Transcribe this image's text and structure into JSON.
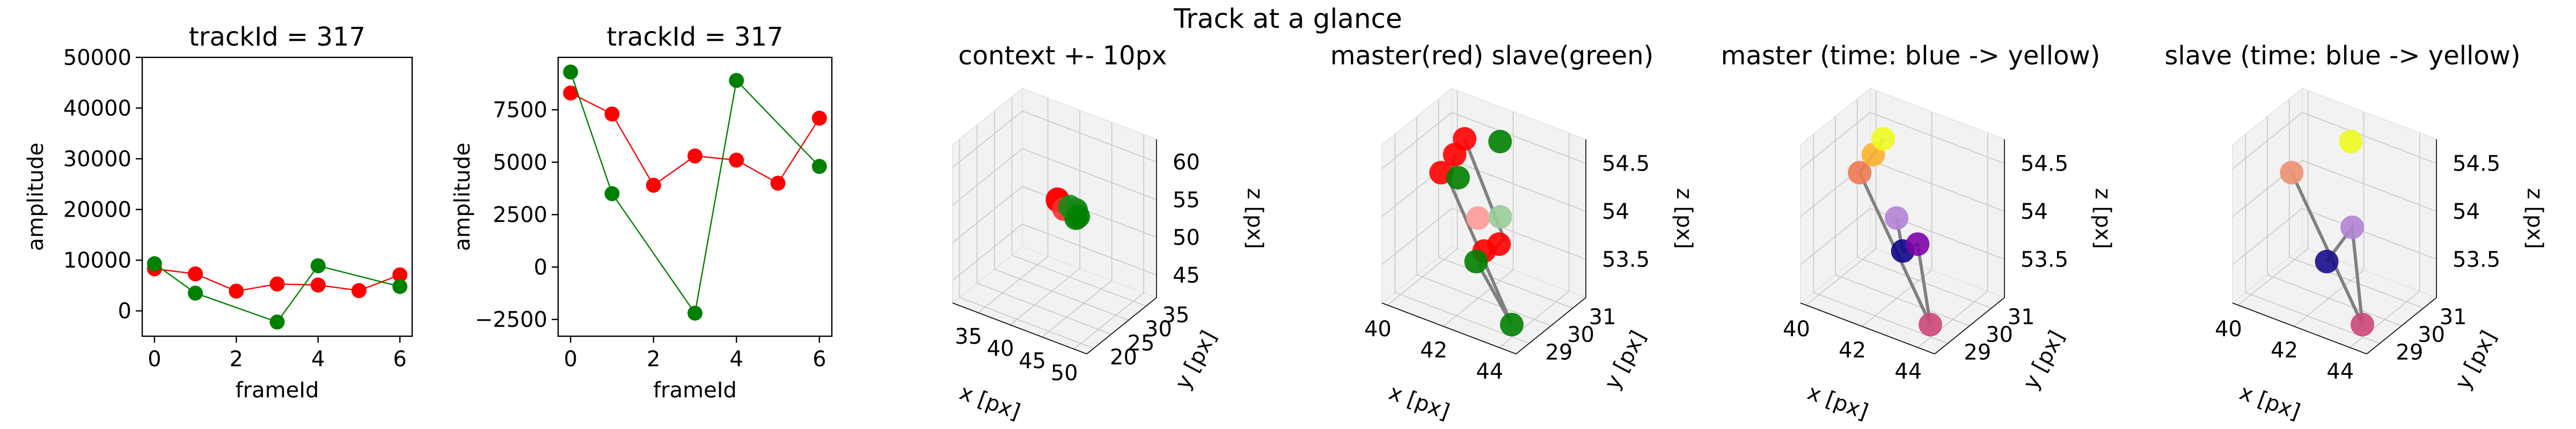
{
  "figure": {
    "suptitle": "Track at a glance"
  },
  "chart_data": [
    {
      "type": "line",
      "title": "trackId = 317",
      "xlabel": "frameId",
      "ylabel": "amplitude",
      "xlim": [
        -0.3,
        6.3
      ],
      "ylim": [
        -5000,
        50000
      ],
      "xticks": [
        0,
        2,
        4,
        6
      ],
      "yticks": [
        0,
        10000,
        20000,
        30000,
        40000,
        50000
      ],
      "series": [
        {
          "color": "#ff0000",
          "x": [
            0,
            1,
            2,
            3,
            4,
            5,
            6
          ],
          "values": [
            8300,
            7300,
            3900,
            5300,
            5100,
            4000,
            7100
          ]
        },
        {
          "color": "#008000",
          "x": [
            0,
            1,
            3,
            4,
            6
          ],
          "values": [
            9300,
            3500,
            -2200,
            8900,
            4800
          ]
        }
      ]
    },
    {
      "type": "line",
      "title": "trackId = 317",
      "xlabel": "frameId",
      "ylabel": "amplitude",
      "xlim": [
        -0.3,
        6.3
      ],
      "ylim": [
        -3300,
        10000
      ],
      "xticks": [
        0,
        2,
        4,
        6
      ],
      "yticks": [
        -2500,
        0,
        2500,
        5000,
        7500
      ],
      "series": [
        {
          "color": "#ff0000",
          "x": [
            0,
            1,
            2,
            3,
            4,
            5,
            6
          ],
          "values": [
            8300,
            7300,
            3900,
            5300,
            5100,
            4000,
            7100
          ]
        },
        {
          "color": "#008000",
          "x": [
            0,
            1,
            3,
            4,
            6
          ],
          "values": [
            9300,
            3500,
            -2200,
            8900,
            4800
          ]
        }
      ]
    },
    {
      "type": "scatter",
      "title": "context +- 10px",
      "xlabel": "x [px]",
      "ylabel": "y [px]",
      "zlabel": "z [px]",
      "xlim": [
        31,
        52
      ],
      "ylim": [
        18,
        38
      ],
      "zlim": [
        42,
        63
      ],
      "xticks": [
        35,
        40,
        45,
        50
      ],
      "yticks": [
        20,
        25,
        30,
        35
      ],
      "zticks": [
        45,
        50,
        55,
        60
      ],
      "lines": [
        {
          "color": "#808080",
          "points": [
            [
              41.2,
              29.5,
              53.6
            ],
            [
              42.8,
              30.8,
              54.3
            ],
            [
              43.6,
              30.1,
              53.8
            ],
            [
              42.3,
              29.8,
              54.2
            ]
          ]
        }
      ],
      "points": [
        {
          "x": 41.0,
          "y": 29.8,
          "z": 54.4,
          "color": "#ff0000"
        },
        {
          "x": 40.6,
          "y": 30.5,
          "z": 54.2,
          "color": "#ff0000"
        },
        {
          "x": 42.1,
          "y": 29.6,
          "z": 53.7,
          "color": "#ff3030"
        },
        {
          "x": 43.4,
          "y": 30.7,
          "z": 53.6,
          "color": "#008000"
        },
        {
          "x": 44.1,
          "y": 29.4,
          "z": 53.2,
          "color": "#008000"
        },
        {
          "x": 42.7,
          "y": 30.2,
          "z": 54.0,
          "color": "#1a8a1a"
        },
        {
          "x": 43.9,
          "y": 30.4,
          "z": 53.0,
          "color": "#008000"
        }
      ]
    },
    {
      "type": "scatter",
      "title": "master(red) slave(green)",
      "xlabel": "x [px]",
      "ylabel": "y [px]",
      "zlabel": "z [px]",
      "xlim": [
        39.8,
        44.6
      ],
      "ylim": [
        28.4,
        31.6
      ],
      "zlim": [
        53.1,
        54.75
      ],
      "xticks": [
        40,
        42,
        44
      ],
      "yticks": [
        29,
        30,
        31
      ],
      "zticks": [
        53.5,
        54.0,
        54.5
      ],
      "lines": [
        {
          "color": "#808080",
          "points": [
            [
              41.0,
              30.2,
              54.45
            ],
            [
              41.3,
              29.6,
              54.3
            ],
            [
              43.9,
              29.1,
              53.2
            ],
            [
              42.5,
              29.4,
              53.6
            ],
            [
              43.0,
              29.9,
              53.85
            ],
            [
              41.2,
              30.4,
              54.6
            ]
          ]
        }
      ],
      "points": [
        {
          "x": 41.2,
          "y": 30.4,
          "z": 54.6,
          "color": "#ff0000"
        },
        {
          "x": 41.0,
          "y": 30.2,
          "z": 54.45,
          "color": "#ff0000"
        },
        {
          "x": 40.2,
          "y": 30.6,
          "z": 54.1,
          "color": "#ff0000"
        },
        {
          "x": 41.6,
          "y": 30.5,
          "z": 53.8,
          "color": "#ff9999"
        },
        {
          "x": 42.6,
          "y": 29.5,
          "z": 53.75,
          "color": "#ff0000"
        },
        {
          "x": 42.9,
          "y": 29.8,
          "z": 53.8,
          "color": "#ff0000"
        },
        {
          "x": 42.0,
          "y": 31.0,
          "z": 54.55,
          "color": "#008000"
        },
        {
          "x": 41.2,
          "y": 30.1,
          "z": 54.25,
          "color": "#008000"
        },
        {
          "x": 42.4,
          "y": 30.5,
          "z": 53.9,
          "color": "#99cc99"
        },
        {
          "x": 42.0,
          "y": 29.9,
          "z": 53.5,
          "color": "#008000"
        },
        {
          "x": 43.9,
          "y": 29.1,
          "z": 53.2,
          "color": "#008000"
        }
      ]
    },
    {
      "type": "scatter",
      "title": "master (time: blue -> yellow)",
      "xlabel": "x [px]",
      "ylabel": "y [px]",
      "zlabel": "z [px]",
      "xlim": [
        39.8,
        44.6
      ],
      "ylim": [
        28.4,
        31.6
      ],
      "zlim": [
        53.1,
        54.75
      ],
      "xticks": [
        40,
        42,
        44
      ],
      "yticks": [
        29,
        30,
        31
      ],
      "zticks": [
        53.5,
        54.0,
        54.5
      ],
      "lines": [
        {
          "color": "#808080",
          "points": [
            [
              41.2,
              30.4,
              54.6
            ],
            [
              41.0,
              30.2,
              54.45
            ],
            [
              40.2,
              30.6,
              54.1
            ],
            [
              43.9,
              29.1,
              53.2
            ],
            [
              42.9,
              29.8,
              53.8
            ],
            [
              42.6,
              29.5,
              53.75
            ],
            [
              41.6,
              30.5,
              53.8
            ]
          ]
        }
      ],
      "points": [
        {
          "x": 42.6,
          "y": 29.5,
          "z": 53.75,
          "color": "#0d0887"
        },
        {
          "x": 42.9,
          "y": 29.8,
          "z": 53.8,
          "color": "#7e03a8"
        },
        {
          "x": 41.6,
          "y": 30.5,
          "z": 53.8,
          "color": "#b482d6"
        },
        {
          "x": 43.9,
          "y": 29.1,
          "z": 53.2,
          "color": "#cc4778"
        },
        {
          "x": 40.2,
          "y": 30.6,
          "z": 54.1,
          "color": "#ed7953"
        },
        {
          "x": 41.0,
          "y": 30.2,
          "z": 54.45,
          "color": "#fdb32f"
        },
        {
          "x": 41.2,
          "y": 30.4,
          "z": 54.6,
          "color": "#f0f921"
        }
      ]
    },
    {
      "type": "scatter",
      "title": "slave (time: blue -> yellow)",
      "xlabel": "x [px]",
      "ylabel": "y [px]",
      "zlabel": "z [px]",
      "xlim": [
        39.8,
        44.6
      ],
      "ylim": [
        28.4,
        31.6
      ],
      "zlim": [
        53.1,
        54.75
      ],
      "xticks": [
        40,
        42,
        44
      ],
      "yticks": [
        29,
        30,
        31
      ],
      "zticks": [
        53.5,
        54.0,
        54.5
      ],
      "lines": [
        {
          "color": "#808080",
          "points": [
            [
              42.0,
              29.9,
              53.5
            ],
            [
              42.6,
              30.3,
              53.85
            ],
            [
              43.9,
              29.1,
              53.2
            ],
            [
              40.2,
              30.6,
              54.1
            ]
          ]
        }
      ],
      "points": [
        {
          "x": 42.0,
          "y": 29.9,
          "z": 53.5,
          "color": "#1a0d8c"
        },
        {
          "x": 42.6,
          "y": 30.3,
          "z": 53.85,
          "color": "#b482d6"
        },
        {
          "x": 43.9,
          "y": 29.1,
          "z": 53.2,
          "color": "#cc4778"
        },
        {
          "x": 40.2,
          "y": 30.6,
          "z": 54.1,
          "color": "#ee9070"
        },
        {
          "x": 42.0,
          "y": 31.0,
          "z": 54.55,
          "color": "#f0f921"
        }
      ]
    }
  ]
}
